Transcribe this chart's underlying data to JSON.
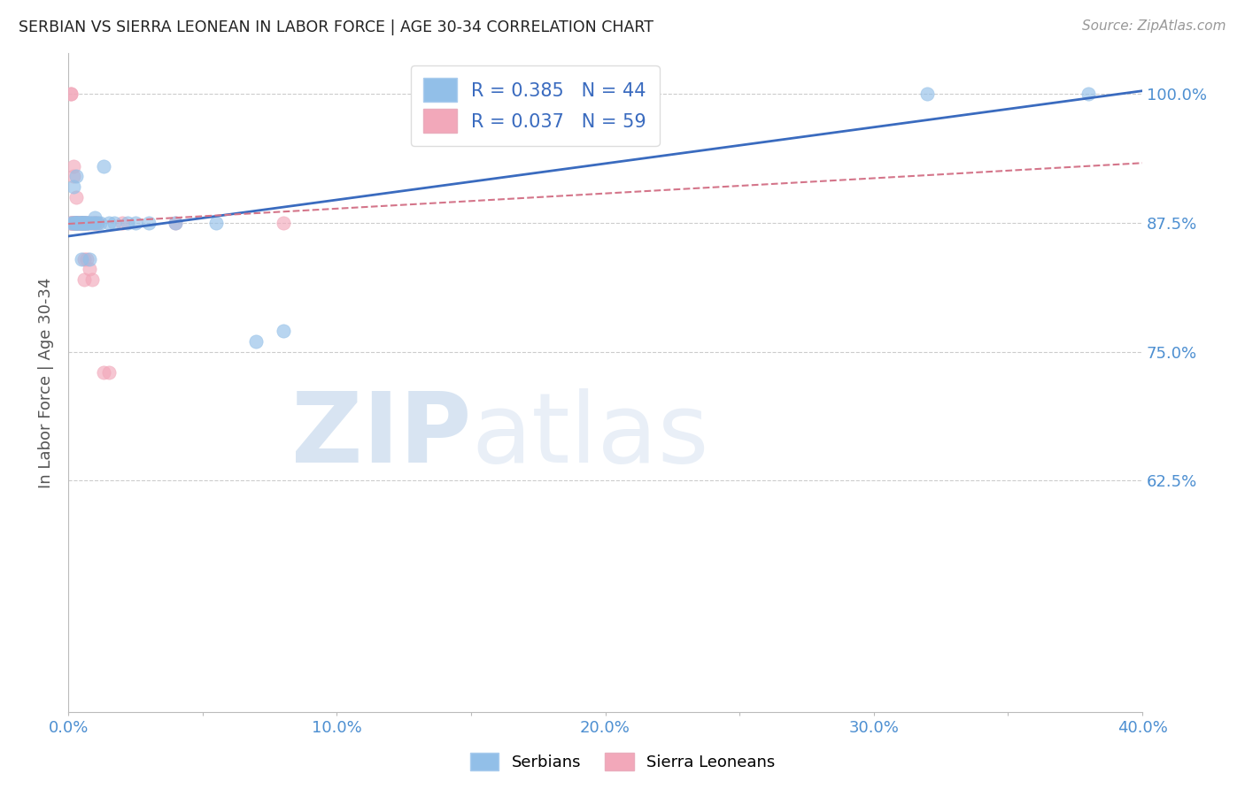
{
  "title": "SERBIAN VS SIERRA LEONEAN IN LABOR FORCE | AGE 30-34 CORRELATION CHART",
  "source": "Source: ZipAtlas.com",
  "ylabel": "In Labor Force | Age 30-34",
  "xlim": [
    0.0,
    0.4
  ],
  "ylim": [
    0.4,
    1.04
  ],
  "yticks": [
    0.625,
    0.75,
    0.875,
    1.0
  ],
  "yticklabels": [
    "62.5%",
    "75.0%",
    "87.5%",
    "100.0%"
  ],
  "xtick_vals": [
    0.0,
    0.05,
    0.1,
    0.15,
    0.2,
    0.25,
    0.3,
    0.35,
    0.4
  ],
  "xtick_labels": [
    "0.0%",
    "",
    "10.0%",
    "",
    "20.0%",
    "",
    "30.0%",
    "",
    "40.0%"
  ],
  "watermark_zip": "ZIP",
  "watermark_atlas": "atlas",
  "serbian_color": "#92bfe8",
  "sierra_leonean_color": "#f2a8ba",
  "serbian_line_color": "#3a6bbf",
  "sierra_leonean_line_color": "#d4758a",
  "background_color": "#ffffff",
  "grid_color": "#cccccc",
  "title_color": "#222222",
  "axis_label_color": "#555555",
  "tick_label_color": "#4d8fd1",
  "legend_r_color": "#3a6bbf",
  "legend_serbian_label": "R = 0.385   N = 44",
  "legend_sierra_label": "R = 0.037   N = 59",
  "serbian_x": [
    0.001,
    0.002,
    0.002,
    0.002,
    0.003,
    0.003,
    0.003,
    0.003,
    0.003,
    0.003,
    0.004,
    0.004,
    0.005,
    0.005,
    0.005,
    0.005,
    0.005,
    0.005,
    0.006,
    0.006,
    0.006,
    0.006,
    0.007,
    0.007,
    0.007,
    0.008,
    0.008,
    0.009,
    0.01,
    0.01,
    0.011,
    0.012,
    0.013,
    0.015,
    0.017,
    0.022,
    0.025,
    0.03,
    0.04,
    0.055,
    0.07,
    0.08,
    0.32,
    0.38
  ],
  "serbian_y": [
    0.875,
    0.91,
    0.875,
    0.875,
    0.92,
    0.875,
    0.875,
    0.875,
    0.875,
    0.875,
    0.875,
    0.875,
    0.875,
    0.875,
    0.875,
    0.875,
    0.84,
    0.875,
    0.875,
    0.875,
    0.875,
    0.875,
    0.875,
    0.875,
    0.875,
    0.84,
    0.875,
    0.875,
    0.875,
    0.88,
    0.875,
    0.875,
    0.93,
    0.875,
    0.875,
    0.875,
    0.875,
    0.875,
    0.875,
    0.875,
    0.76,
    0.77,
    1.0,
    1.0
  ],
  "sierra_x": [
    0.001,
    0.001,
    0.001,
    0.001,
    0.001,
    0.002,
    0.002,
    0.002,
    0.002,
    0.002,
    0.002,
    0.002,
    0.002,
    0.003,
    0.003,
    0.003,
    0.003,
    0.003,
    0.003,
    0.003,
    0.003,
    0.003,
    0.004,
    0.004,
    0.004,
    0.004,
    0.004,
    0.004,
    0.004,
    0.004,
    0.005,
    0.005,
    0.005,
    0.005,
    0.005,
    0.005,
    0.005,
    0.005,
    0.006,
    0.006,
    0.006,
    0.006,
    0.006,
    0.006,
    0.007,
    0.007,
    0.007,
    0.008,
    0.008,
    0.009,
    0.009,
    0.01,
    0.01,
    0.011,
    0.013,
    0.015,
    0.02,
    0.04,
    0.08
  ],
  "sierra_y": [
    0.875,
    0.875,
    1.0,
    1.0,
    0.875,
    0.875,
    0.875,
    0.875,
    0.875,
    0.875,
    0.93,
    0.92,
    0.875,
    0.875,
    0.875,
    0.875,
    0.875,
    0.875,
    0.875,
    0.875,
    0.9,
    0.875,
    0.875,
    0.875,
    0.875,
    0.875,
    0.875,
    0.875,
    0.875,
    0.875,
    0.875,
    0.875,
    0.875,
    0.875,
    0.875,
    0.875,
    0.875,
    0.875,
    0.875,
    0.875,
    0.875,
    0.82,
    0.84,
    0.875,
    0.875,
    0.84,
    0.875,
    0.83,
    0.875,
    0.82,
    0.875,
    0.875,
    0.875,
    0.875,
    0.73,
    0.73,
    0.875,
    0.875,
    0.875
  ],
  "marker_size": 11,
  "marker_alpha": 0.65,
  "serbian_trend_y0": 0.862,
  "serbian_trend_y1": 1.003,
  "sierra_trend_y0": 0.874,
  "sierra_trend_y1": 0.933
}
